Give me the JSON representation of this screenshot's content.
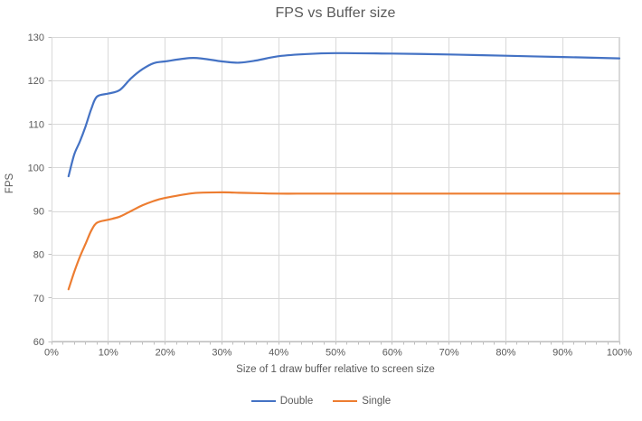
{
  "title": "FPS vs Buffer size",
  "colors": {
    "grid": "#d9d9d9",
    "axis_line": "#bfbfbf",
    "tick": "#bfbfbf",
    "text": "#595959",
    "background": "#ffffff",
    "series_double": "#4472c4",
    "series_single": "#ed7d31"
  },
  "chart_data": {
    "type": "line",
    "title": "FPS vs Buffer size",
    "xlabel": "Size of 1 draw buffer relative to screen size",
    "ylabel": "FPS",
    "xlim": [
      0,
      100
    ],
    "ylim": [
      60,
      130
    ],
    "x_tick_labels": [
      "0%",
      "10%",
      "20%",
      "30%",
      "40%",
      "50%",
      "60%",
      "70%",
      "80%",
      "90%",
      "100%"
    ],
    "y_tick_labels": [
      "60",
      "70",
      "80",
      "90",
      "100",
      "110",
      "120",
      "130"
    ],
    "y_ticks": [
      60,
      70,
      80,
      90,
      100,
      110,
      120,
      130
    ],
    "x_major_step": 10,
    "x_minor_step": 2,
    "grid": true,
    "smooth_lines": true,
    "legend_position": "bottom",
    "x": [
      3,
      4,
      5,
      6,
      7,
      8,
      10,
      12,
      14,
      16,
      18,
      20,
      25,
      30,
      33,
      36,
      40,
      45,
      50,
      60,
      70,
      80,
      90,
      100
    ],
    "series": [
      {
        "name": "Double",
        "color": "#4472c4",
        "values": [
          98,
          103,
          106,
          109.5,
          113.5,
          116.3,
          117,
          117.8,
          120.5,
          122.6,
          124,
          124.4,
          125.2,
          124.4,
          124.1,
          124.6,
          125.6,
          126.1,
          126.3,
          126.2,
          126,
          125.7,
          125.4,
          125.1
        ]
      },
      {
        "name": "Single",
        "color": "#ed7d31",
        "values": [
          72,
          76,
          79.5,
          82.5,
          85.5,
          87.3,
          88,
          88.7,
          90,
          91.3,
          92.3,
          93,
          94.1,
          94.3,
          94.2,
          94.1,
          94,
          94,
          94,
          94,
          94,
          94,
          94,
          94
        ]
      }
    ]
  }
}
